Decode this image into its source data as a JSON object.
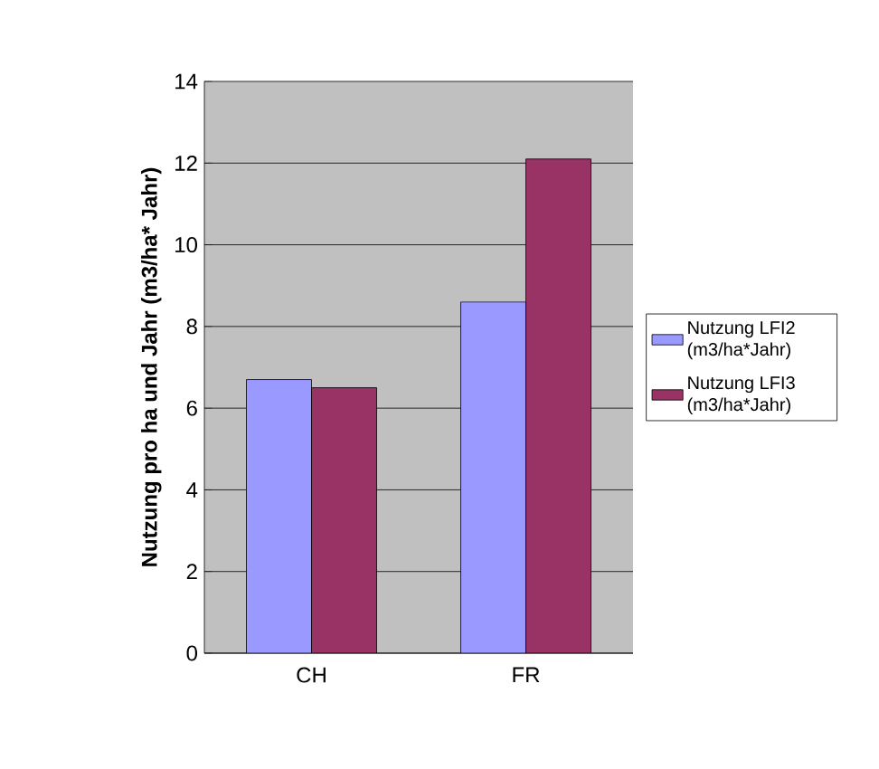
{
  "chart_data": {
    "type": "bar",
    "ylabel": "Nutzung pro ha und Jahr (m3/ha* Jahr)",
    "categories": [
      "CH",
      "FR"
    ],
    "series": [
      {
        "name": "Nutzung LFI2 (m3/ha*Jahr)",
        "color": "#9999ff",
        "values": [
          6.7,
          8.6
        ]
      },
      {
        "name": "Nutzung LFI3 (m3/ha*Jahr)",
        "color": "#993366",
        "values": [
          6.5,
          12.1
        ]
      }
    ],
    "ylim": [
      0,
      14
    ],
    "yticks": [
      0,
      2,
      4,
      6,
      8,
      10,
      12,
      14
    ],
    "grid": "y",
    "legend": "right"
  }
}
